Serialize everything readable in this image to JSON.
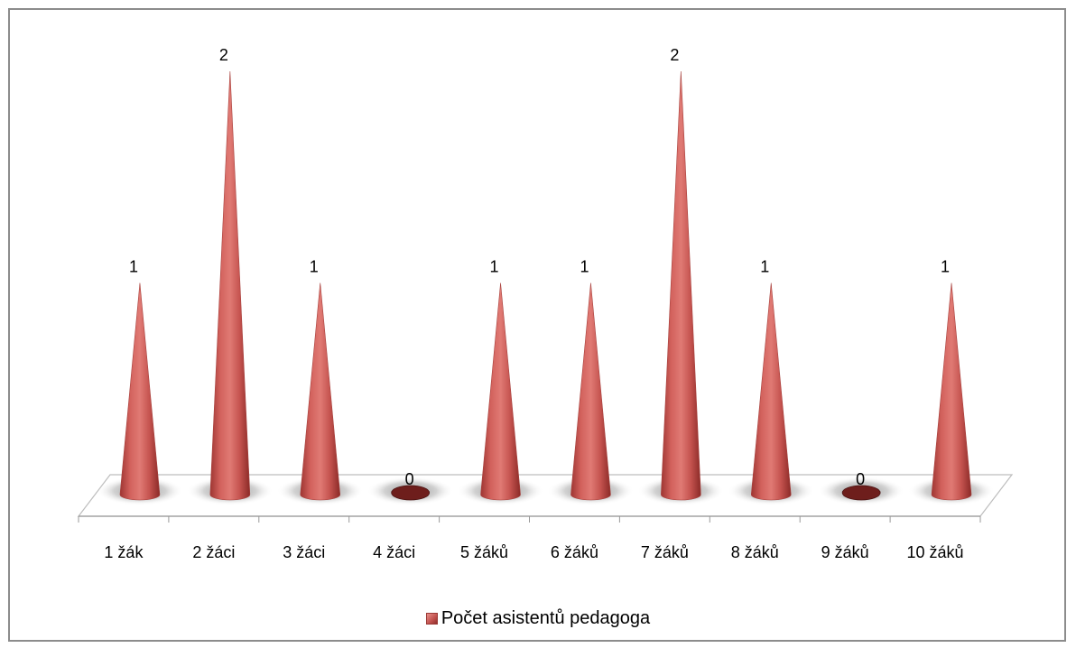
{
  "chart_data": {
    "type": "bar",
    "style": "3d-cone",
    "categories": [
      "1 žák",
      "2 žáci",
      "3 žáci",
      "4 žáci",
      "5 žáků",
      "6 žáků",
      "7 žáků",
      "8 žáků",
      "9 žáků",
      "10 žáků"
    ],
    "series": [
      {
        "name": "Počet asistentů pedagoga",
        "values": [
          1,
          2,
          1,
          0,
          1,
          1,
          2,
          1,
          0,
          1
        ],
        "color": "#c0504d"
      }
    ],
    "data_labels": [
      "1",
      "2",
      "1",
      "0",
      "1",
      "1",
      "2",
      "1",
      "0",
      "1"
    ],
    "ylim": [
      0,
      2
    ],
    "grid": false,
    "legend_position": "bottom"
  },
  "legend": {
    "label": "Počet asistentů pedagoga"
  }
}
